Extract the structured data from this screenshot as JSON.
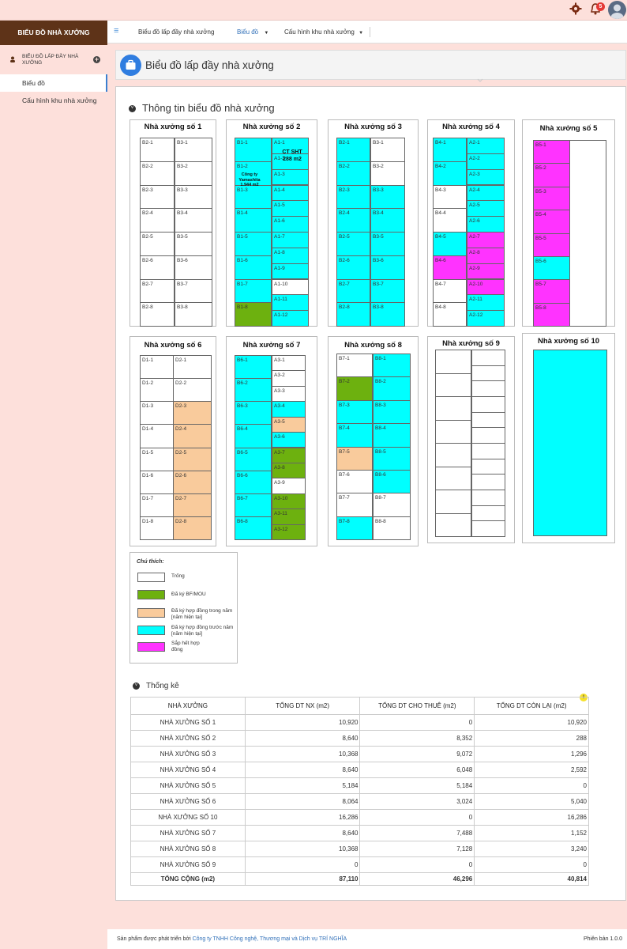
{
  "topbar": {
    "gear_icon": "gear-icon",
    "bell_icon": "bell-icon",
    "notification_count": "5",
    "avatar": "user-avatar"
  },
  "sidebar": {
    "brand": "BIỂU ĐỒ NHÀ XƯỞNG",
    "group_label": "BIỂU ĐỒ LẤP ĐẦY NHÀ XƯỞNG",
    "items": [
      {
        "label": "Biểu đồ",
        "active": true
      },
      {
        "label": "Cấu hình khu nhà xưởng",
        "active": false
      }
    ]
  },
  "topnav": {
    "items": [
      "Biểu đồ lấp đầy nhà xưởng",
      "Biểu đồ",
      "Cấu hình khu nhà xưởng"
    ]
  },
  "page_title": "Biểu đồ lấp đầy nhà xưởng",
  "section_chart_title": "Thông tin biểu đồ nhà xưởng",
  "colors": {
    "empty": "#ffffff",
    "bf": "#6db10f",
    "current": "#f9cb9c",
    "previous": "#00ffff",
    "expiring": "#ff33ff"
  },
  "warehouses": [
    {
      "name": "Nhà xưởng số 1",
      "cols": [
        [
          [
            "B2-1",
            "empty"
          ],
          [
            "B2-2",
            "empty"
          ],
          [
            "B2-3",
            "empty"
          ],
          [
            "B2-4",
            "empty"
          ],
          [
            "B2-5",
            "empty"
          ],
          [
            "B2-6",
            "empty"
          ],
          [
            "B2-7",
            "empty"
          ],
          [
            "B2-8",
            "empty"
          ]
        ],
        [
          [
            "B3-1",
            "empty"
          ],
          [
            "B3-2",
            "empty"
          ],
          [
            "B3-3",
            "empty"
          ],
          [
            "B3-4",
            "empty"
          ],
          [
            "B3-5",
            "empty"
          ],
          [
            "B3-6",
            "empty"
          ],
          [
            "B3-7",
            "empty"
          ],
          [
            "B3-8",
            "empty"
          ]
        ]
      ]
    },
    {
      "name": "Nhà xưởng số 2",
      "cols": [
        [
          [
            "B1-1",
            "previous"
          ],
          [
            "B1-2",
            "previous"
          ],
          [
            "B1-3",
            "previous"
          ],
          [
            "B1-4",
            "previous"
          ],
          [
            "B1-5",
            "previous"
          ],
          [
            "B1-6",
            "previous"
          ],
          [
            "B1-7",
            "previous"
          ],
          [
            "B1-8",
            "bf"
          ]
        ],
        [
          [
            "A1-1",
            "previous"
          ],
          [
            "A1-2",
            "previous"
          ],
          [
            "A1-3",
            "previous"
          ],
          [
            "A1-4",
            "previous"
          ],
          [
            "A1-5",
            "previous"
          ],
          [
            "A1-6",
            "previous"
          ],
          [
            "A1-7",
            "previous"
          ],
          [
            "A1-8",
            "previous"
          ],
          [
            "A1-9",
            "previous"
          ],
          [
            "A1-10",
            "empty"
          ],
          [
            "A1-11",
            "previous"
          ],
          [
            "A1-12",
            "previous"
          ]
        ]
      ],
      "notes": [
        "CT SHT",
        "288 m2",
        "Công ty Yamashita 1.944 m2"
      ]
    },
    {
      "name": "Nhà xưởng số 3",
      "cols": [
        [
          [
            "B2-1",
            "previous"
          ],
          [
            "B2-2",
            "previous"
          ],
          [
            "B2-3",
            "previous"
          ],
          [
            "B2-4",
            "previous"
          ],
          [
            "B2-5",
            "previous"
          ],
          [
            "B2-6",
            "previous"
          ],
          [
            "B2-7",
            "previous"
          ],
          [
            "B2-8",
            "previous"
          ]
        ],
        [
          [
            "B3-1",
            "empty"
          ],
          [
            "B3-2",
            "empty"
          ],
          [
            "B3-3",
            "previous"
          ],
          [
            "B3-4",
            "previous"
          ],
          [
            "B3-5",
            "previous"
          ],
          [
            "B3-6",
            "previous"
          ],
          [
            "B3-7",
            "previous"
          ],
          [
            "B3-8",
            "previous"
          ]
        ]
      ]
    },
    {
      "name": "Nhà xưởng số 4",
      "cols": [
        [
          [
            "B4-1",
            "previous"
          ],
          [
            "B4-2",
            "previous"
          ],
          [
            "B4-3",
            "empty"
          ],
          [
            "B4-4",
            "empty"
          ],
          [
            "B4-5",
            "previous"
          ],
          [
            "B4-6",
            "expiring"
          ],
          [
            "B4-7",
            "empty"
          ],
          [
            "B4-8",
            "empty"
          ]
        ],
        [
          [
            "A2-1",
            "previous"
          ],
          [
            "A2-2",
            "previous"
          ],
          [
            "A2-3",
            "previous"
          ],
          [
            "A2-4",
            "previous"
          ],
          [
            "A2-5",
            "previous"
          ],
          [
            "A2-6",
            "previous"
          ],
          [
            "A2-7",
            "expiring"
          ],
          [
            "A2-8",
            "expiring"
          ],
          [
            "A2-9",
            "expiring"
          ],
          [
            "A2-10",
            "expiring"
          ],
          [
            "A2-11",
            "previous"
          ],
          [
            "A2-12",
            "previous"
          ]
        ]
      ]
    },
    {
      "name": "Nhà xưởng số 5",
      "cols": [
        [
          [
            "B5-1",
            "expiring"
          ],
          [
            "B5-2",
            "expiring"
          ],
          [
            "B5-3",
            "expiring"
          ],
          [
            "B5-4",
            "expiring"
          ],
          [
            "B5-5",
            "expiring"
          ],
          [
            "B5-6",
            "previous"
          ],
          [
            "B5-7",
            "expiring"
          ],
          [
            "B5-8",
            "expiring"
          ]
        ],
        [
          [
            "",
            "empty"
          ]
        ]
      ]
    },
    {
      "name": "Nhà xưởng số 6",
      "cols": [
        [
          [
            "D1-1",
            "empty"
          ],
          [
            "D1-2",
            "empty"
          ],
          [
            "D1-3",
            "empty"
          ],
          [
            "D1-4",
            "empty"
          ],
          [
            "D1-5",
            "empty"
          ],
          [
            "D1-6",
            "empty"
          ],
          [
            "D1-7",
            "empty"
          ],
          [
            "D1-8",
            "empty"
          ]
        ],
        [
          [
            "D2-1",
            "empty"
          ],
          [
            "D2-2",
            "empty"
          ],
          [
            "D2-3",
            "current"
          ],
          [
            "D2-4",
            "current"
          ],
          [
            "D2-5",
            "current"
          ],
          [
            "D2-6",
            "current"
          ],
          [
            "D2-7",
            "current"
          ],
          [
            "D2-8",
            "current"
          ]
        ]
      ]
    },
    {
      "name": "Nhà xưởng số 7",
      "cols": [
        [
          [
            "B6-1",
            "previous"
          ],
          [
            "B6-2",
            "previous"
          ],
          [
            "B6-3",
            "previous"
          ],
          [
            "B6-4",
            "previous"
          ],
          [
            "B6-5",
            "previous"
          ],
          [
            "B6-6",
            "previous"
          ],
          [
            "B6-7",
            "previous"
          ],
          [
            "B6-8",
            "previous"
          ]
        ],
        [
          [
            "A3-1",
            "empty"
          ],
          [
            "A3-2",
            "empty"
          ],
          [
            "A3-3",
            "empty"
          ],
          [
            "A3-4",
            "previous"
          ],
          [
            "A3-5",
            "current"
          ],
          [
            "A3-6",
            "previous"
          ],
          [
            "A3-7",
            "bf"
          ],
          [
            "A3-8",
            "bf"
          ],
          [
            "A3-9",
            "empty"
          ],
          [
            "A3-10",
            "bf"
          ],
          [
            "A3-11",
            "bf"
          ],
          [
            "A3-12",
            "bf"
          ]
        ]
      ]
    },
    {
      "name": "Nhà xưởng số 8",
      "cols": [
        [
          [
            "B7-1",
            "empty"
          ],
          [
            "B7-2",
            "bf"
          ],
          [
            "B7-3",
            "previous"
          ],
          [
            "B7-4",
            "previous"
          ],
          [
            "B7-5",
            "current"
          ],
          [
            "B7-6",
            "empty"
          ],
          [
            "B7-7",
            "empty"
          ],
          [
            "B7-8",
            "previous"
          ]
        ],
        [
          [
            "B8-1",
            "previous"
          ],
          [
            "B8-2",
            "previous"
          ],
          [
            "B8-3",
            "previous"
          ],
          [
            "B8-4",
            "previous"
          ],
          [
            "B8-5",
            "previous"
          ],
          [
            "B8-6",
            "previous"
          ],
          [
            "B8-7",
            "empty"
          ],
          [
            "B8-8",
            "empty"
          ]
        ]
      ]
    },
    {
      "name": "Nhà xưởng số 9",
      "cols": [
        [
          [
            "",
            "empty"
          ],
          [
            "",
            "empty"
          ],
          [
            "",
            "empty"
          ],
          [
            "",
            "empty"
          ],
          [
            "",
            "empty"
          ],
          [
            "",
            "empty"
          ],
          [
            "",
            "empty"
          ],
          [
            "",
            "empty"
          ]
        ],
        [
          [
            "",
            "empty"
          ],
          [
            "",
            "empty"
          ],
          [
            "",
            "empty"
          ],
          [
            "",
            "empty"
          ],
          [
            "",
            "empty"
          ],
          [
            "",
            "empty"
          ],
          [
            "",
            "empty"
          ],
          [
            "",
            "empty"
          ],
          [
            "",
            "empty"
          ],
          [
            "",
            "empty"
          ],
          [
            "",
            "empty"
          ],
          [
            "",
            "empty"
          ]
        ]
      ]
    },
    {
      "name": "Nhà xưởng số 10",
      "cols": [
        [
          [
            "",
            "previous"
          ]
        ]
      ]
    }
  ],
  "legend": {
    "title": "Chú thích:",
    "items": [
      {
        "label": "Trống",
        "color": "#ffffff"
      },
      {
        "label": "Đã ký BF/MOU",
        "color": "#6db10f"
      },
      {
        "label": "Đã ký hợp đồng trong năm [năm hiện tại]",
        "color": "#f9cb9c"
      },
      {
        "label": "Đã ký hợp đồng trước năm [năm hiện tại]",
        "color": "#00ffff"
      },
      {
        "label": "Sắp hết hợp đồng",
        "color": "#ff33ff"
      }
    ]
  },
  "stats": {
    "title": "Thống kê",
    "note_badge": "!",
    "headers": [
      "NHÀ XƯỞNG",
      "TỔNG DT NX (m2)",
      "TỔNG DT CHO THUÊ (m2)",
      "TỔNG DT CÒN LẠI (m2)"
    ],
    "rows": [
      [
        "NHÀ XƯỞNG SỐ 1",
        "10,920",
        "0",
        "10,920"
      ],
      [
        "NHÀ XƯỞNG SỐ 2",
        "8,640",
        "8,352",
        "288"
      ],
      [
        "NHÀ XƯỞNG SỐ 3",
        "10,368",
        "9,072",
        "1,296"
      ],
      [
        "NHÀ XƯỞNG SỐ 4",
        "8,640",
        "6,048",
        "2,592"
      ],
      [
        "NHÀ XƯỞNG SỐ 5",
        "5,184",
        "5,184",
        "0"
      ],
      [
        "NHÀ XƯỞNG SỐ 6",
        "8,064",
        "3,024",
        "5,040"
      ],
      [
        "NHÀ XƯỞNG SỐ 10",
        "16,286",
        "0",
        "16,286"
      ],
      [
        "NHÀ XƯỞNG SỐ 7",
        "8,640",
        "7,488",
        "1,152"
      ],
      [
        "NHÀ XƯỞNG SỐ 8",
        "10,368",
        "7,128",
        "3,240"
      ],
      [
        "NHÀ XƯỞNG SỐ 9",
        "0",
        "0",
        "0"
      ]
    ],
    "total": [
      "TỔNG CỘNG (m2)",
      "87,110",
      "46,296",
      "40,814"
    ]
  },
  "footer": {
    "prefix": "Sản phẩm được phát triển bởi ",
    "company": "Công ty TNHH Công nghệ, Thương mại và Dịch vụ TRÍ NGHĨA",
    "version": "Phiên bản 1.0.0"
  }
}
